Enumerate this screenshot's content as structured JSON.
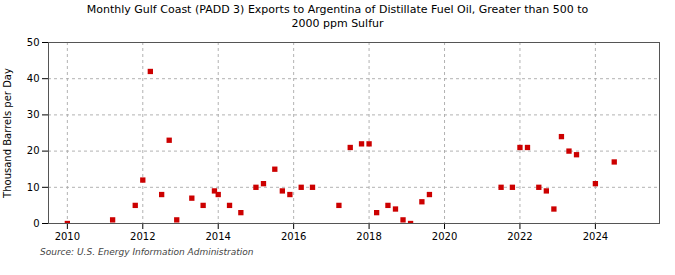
{
  "chart_data": {
    "type": "scatter",
    "title": "Monthly Gulf Coast (PADD 3) Exports to Argentina of Distillate Fuel Oil, Greater than 500 to\n2000 ppm Sulfur",
    "ylabel": "Thousand Barrels per Day",
    "source": "Source: U.S. Energy Information Administration",
    "color": "#cc0000",
    "marker": "square",
    "grid": true,
    "xlim": [
      2009.5,
      2025.7
    ],
    "xticks": [
      2010,
      2012,
      2014,
      2016,
      2018,
      2020,
      2022,
      2024
    ],
    "ylim": [
      0,
      50
    ],
    "yticks": [
      0,
      10,
      20,
      30,
      40,
      50
    ],
    "x": [
      2010.0,
      2011.2,
      2011.8,
      2012.0,
      2012.2,
      2012.5,
      2012.7,
      2012.9,
      2013.3,
      2013.6,
      2013.9,
      2014.0,
      2014.3,
      2014.6,
      2015.0,
      2015.2,
      2015.5,
      2015.7,
      2015.9,
      2016.2,
      2016.5,
      2017.2,
      2017.5,
      2017.8,
      2018.0,
      2018.2,
      2018.5,
      2018.7,
      2018.9,
      2019.1,
      2019.4,
      2019.6,
      2021.5,
      2021.8,
      2022.0,
      2022.2,
      2022.5,
      2022.7,
      2022.9,
      2023.1,
      2023.3,
      2023.5,
      2024.0,
      2024.5
    ],
    "values": [
      0,
      1,
      5,
      12,
      42,
      8,
      23,
      1,
      7,
      5,
      9,
      8,
      5,
      3,
      10,
      11,
      15,
      9,
      8,
      10,
      10,
      5,
      21,
      22,
      22,
      3,
      5,
      4,
      1,
      0,
      6,
      8,
      10,
      10,
      21,
      21,
      10,
      9,
      4,
      24,
      20,
      19,
      11,
      17
    ]
  }
}
